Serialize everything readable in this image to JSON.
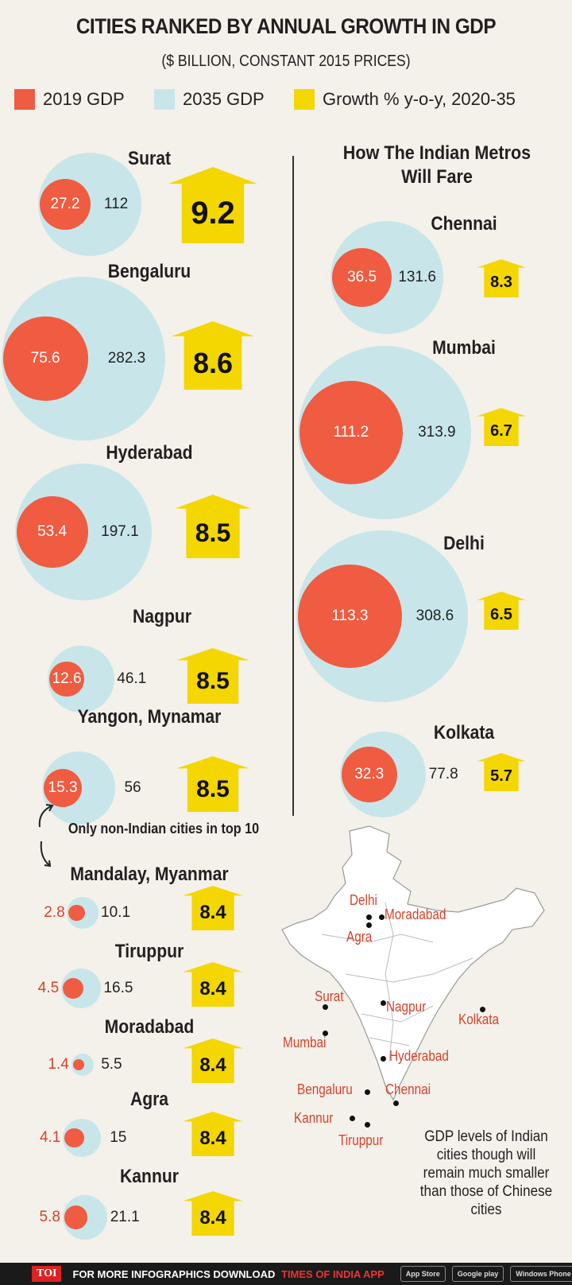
{
  "title": "CITIES RANKED BY ANNUAL GROWTH IN GDP",
  "subtitle": "($ BILLION, CONSTANT 2015 PRICES)",
  "legend": [
    {
      "label": "2019 GDP",
      "color": "#ef5c41"
    },
    {
      "label": "2035 GDP",
      "color": "#c8e6ea"
    },
    {
      "label": "Growth % y-o-y, 2020-35",
      "color": "#f4d600"
    }
  ],
  "metro_header": "How The Indian Metros Will Fare",
  "note": "Only non-Indian cities in top 10",
  "map_note": "GDP levels of Indian cities though will remain much smaller than those of Chinese cities",
  "map_labels": [
    "Delhi",
    "Moradabad",
    "Agra",
    "Surat",
    "Nagpur",
    "Kolkata",
    "Mumbai",
    "Hyderabad",
    "Bengaluru",
    "Chennai",
    "Kannur",
    "Tiruppur"
  ],
  "footer": {
    "logo": "TOI",
    "text": "FOR MORE INFOGRAPHICS DOWNLOAD",
    "app": "TIMES OF INDIA APP",
    "badges": [
      "App Store",
      "Google play",
      "Windows Phone"
    ]
  },
  "chart_data": [
    {
      "type": "bubble",
      "title": "CITIES RANKED BY ANNUAL GROWTH IN GDP",
      "series_names": [
        "2019 GDP",
        "2035 GDP",
        "Growth % y-o-y, 2020-35"
      ],
      "cities": [
        {
          "name": "Surat",
          "gdp2019": 27.2,
          "gdp2035": 112,
          "growth": 9.2
        },
        {
          "name": "Bengaluru",
          "gdp2019": 75.6,
          "gdp2035": 282.3,
          "growth": 8.6
        },
        {
          "name": "Hyderabad",
          "gdp2019": 53.4,
          "gdp2035": 197.1,
          "growth": 8.5
        },
        {
          "name": "Nagpur",
          "gdp2019": 12.6,
          "gdp2035": 46.1,
          "growth": 8.5
        },
        {
          "name": "Yangon, Mynamar",
          "gdp2019": 15.3,
          "gdp2035": 56,
          "growth": 8.5
        },
        {
          "name": "Mandalay, Myanmar",
          "gdp2019": 2.8,
          "gdp2035": 10.1,
          "growth": 8.4
        },
        {
          "name": "Tiruppur",
          "gdp2019": 4.5,
          "gdp2035": 16.5,
          "growth": 8.4
        },
        {
          "name": "Moradabad",
          "gdp2019": 1.4,
          "gdp2035": 5.5,
          "growth": 8.4
        },
        {
          "name": "Agra",
          "gdp2019": 4.1,
          "gdp2035": 15,
          "growth": 8.4
        },
        {
          "name": "Kannur",
          "gdp2019": 5.8,
          "gdp2035": 21.1,
          "growth": 8.4
        }
      ]
    },
    {
      "type": "bubble",
      "title": "How The Indian Metros Will Fare",
      "cities": [
        {
          "name": "Chennai",
          "gdp2019": 36.5,
          "gdp2035": 131.6,
          "growth": 8.3
        },
        {
          "name": "Mumbai",
          "gdp2019": 111.2,
          "gdp2035": 313.9,
          "growth": 6.7
        },
        {
          "name": "Delhi",
          "gdp2019": 113.3,
          "gdp2035": 308.6,
          "growth": 6.5
        },
        {
          "name": "Kolkata",
          "gdp2019": 32.3,
          "gdp2035": 77.8,
          "growth": 5.7
        }
      ]
    }
  ]
}
